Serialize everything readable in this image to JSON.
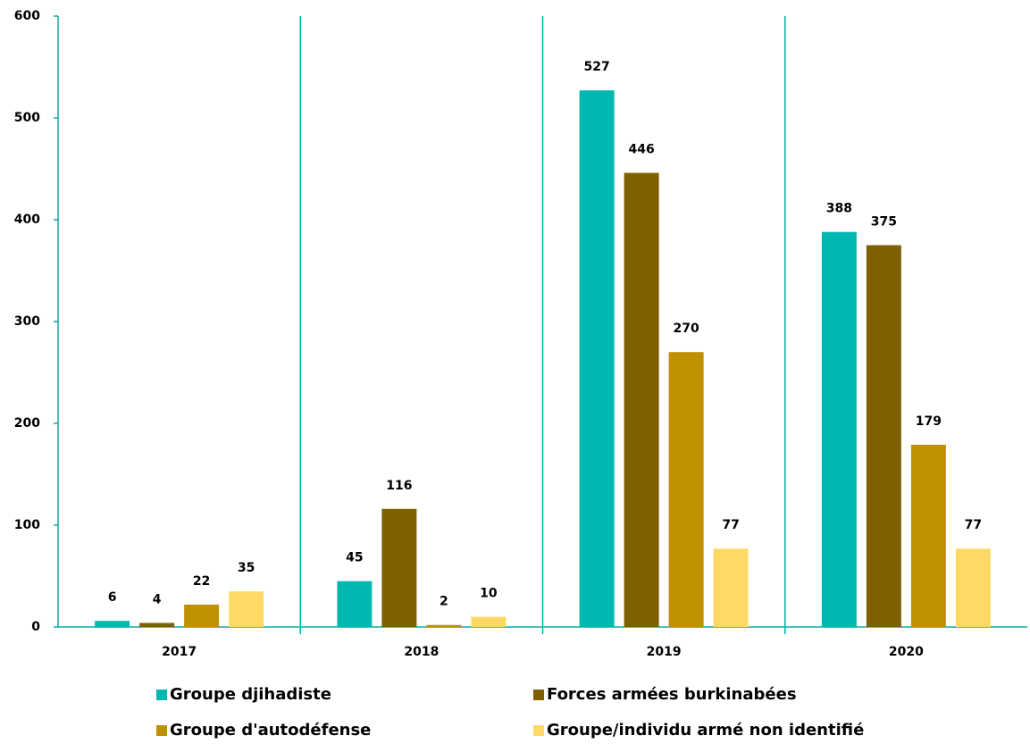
{
  "chart_data": {
    "type": "bar",
    "categories": [
      "2017",
      "2018",
      "2019",
      "2020"
    ],
    "series": [
      {
        "name": "Groupe djihadiste",
        "color": "#00b8b0",
        "values": [
          6,
          45,
          527,
          388
        ]
      },
      {
        "name": "Forces armées burkinabées",
        "color": "#7f6000",
        "values": [
          4,
          116,
          446,
          375
        ]
      },
      {
        "name": "Groupe d'autodéfense",
        "color": "#bf9000",
        "values": [
          22,
          2,
          270,
          179
        ]
      },
      {
        "name": "Groupe/individu armé non identifié",
        "color": "#ffd966",
        "values": [
          35,
          10,
          77,
          77
        ]
      }
    ],
    "ylim": [
      0,
      600
    ],
    "yticks": [
      0,
      100,
      200,
      300,
      400,
      500,
      600
    ],
    "axis_color": "#00b0a8"
  }
}
